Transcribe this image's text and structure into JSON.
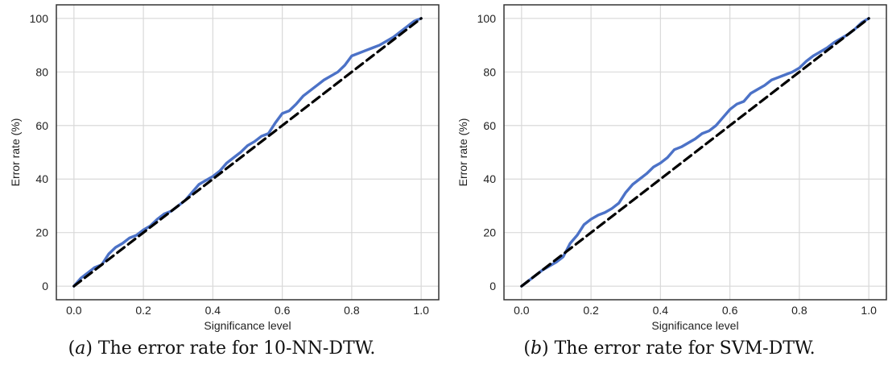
{
  "chart_data": [
    {
      "type": "line",
      "caption_letter": "a",
      "caption_text": "The error rate for 10-NN-DTW.",
      "xlabel": "Significance level",
      "ylabel": "Error rate (%)",
      "xlim": [
        0.0,
        1.0
      ],
      "ylim": [
        0,
        100
      ],
      "xticks": [
        "0.0",
        "0.2",
        "0.4",
        "0.6",
        "0.8",
        "1.0"
      ],
      "yticks": [
        "0",
        "20",
        "40",
        "60",
        "80",
        "100"
      ],
      "grid": true,
      "series": [
        {
          "style": "solid",
          "color": "#4c72c7",
          "x": [
            0.0,
            0.02,
            0.04,
            0.06,
            0.08,
            0.1,
            0.12,
            0.14,
            0.16,
            0.18,
            0.2,
            0.22,
            0.24,
            0.26,
            0.28,
            0.3,
            0.32,
            0.34,
            0.36,
            0.38,
            0.4,
            0.42,
            0.44,
            0.46,
            0.48,
            0.5,
            0.52,
            0.54,
            0.56,
            0.58,
            0.6,
            0.62,
            0.64,
            0.66,
            0.68,
            0.7,
            0.72,
            0.74,
            0.76,
            0.78,
            0.8,
            0.82,
            0.84,
            0.86,
            0.88,
            0.9,
            0.92,
            0.94,
            0.96,
            0.98,
            1.0
          ],
          "y": [
            0,
            3,
            5,
            7,
            8,
            12,
            14.5,
            16,
            18,
            19,
            21,
            22.5,
            25,
            27,
            28,
            30,
            32,
            35,
            38,
            39.5,
            41,
            43,
            46,
            48,
            50,
            52.5,
            54,
            56,
            57,
            61,
            64.5,
            65.5,
            68,
            71,
            73,
            75,
            77,
            78.5,
            80,
            82.5,
            86,
            87,
            88,
            89,
            90,
            91.5,
            93,
            95,
            97,
            99,
            100
          ]
        },
        {
          "style": "dashed",
          "color": "#000000",
          "x": [
            0.0,
            1.0
          ],
          "y": [
            0,
            100
          ]
        }
      ]
    },
    {
      "type": "line",
      "caption_letter": "b",
      "caption_text": "The error rate for SVM-DTW.",
      "xlabel": "Significance level",
      "ylabel": "Error rate (%)",
      "xlim": [
        0.0,
        1.0
      ],
      "ylim": [
        0,
        100
      ],
      "xticks": [
        "0.0",
        "0.2",
        "0.4",
        "0.6",
        "0.8",
        "1.0"
      ],
      "yticks": [
        "0",
        "20",
        "40",
        "60",
        "80",
        "100"
      ],
      "grid": true,
      "series": [
        {
          "style": "solid",
          "color": "#4c72c7",
          "x": [
            0.0,
            0.02,
            0.04,
            0.06,
            0.08,
            0.1,
            0.12,
            0.14,
            0.16,
            0.18,
            0.2,
            0.22,
            0.24,
            0.26,
            0.28,
            0.3,
            0.32,
            0.34,
            0.36,
            0.38,
            0.4,
            0.42,
            0.44,
            0.46,
            0.48,
            0.5,
            0.52,
            0.54,
            0.56,
            0.58,
            0.6,
            0.62,
            0.64,
            0.66,
            0.68,
            0.7,
            0.72,
            0.74,
            0.76,
            0.78,
            0.8,
            0.82,
            0.84,
            0.86,
            0.88,
            0.9,
            0.92,
            0.94,
            0.96,
            0.98,
            1.0
          ],
          "y": [
            0,
            2,
            4,
            6,
            7.5,
            9,
            11,
            16,
            19,
            23,
            25,
            26.5,
            27.5,
            29,
            31,
            35,
            38,
            40,
            42,
            44.5,
            46,
            48,
            51,
            52,
            53.5,
            55,
            57,
            58,
            60,
            63,
            66,
            68,
            69,
            72,
            73.5,
            75,
            77,
            78,
            79,
            80,
            81.5,
            84,
            86,
            87.5,
            89,
            91,
            92.5,
            94,
            96,
            98.5,
            100
          ]
        },
        {
          "style": "dashed",
          "color": "#000000",
          "x": [
            0.0,
            1.0
          ],
          "y": [
            0,
            100
          ]
        }
      ]
    }
  ]
}
